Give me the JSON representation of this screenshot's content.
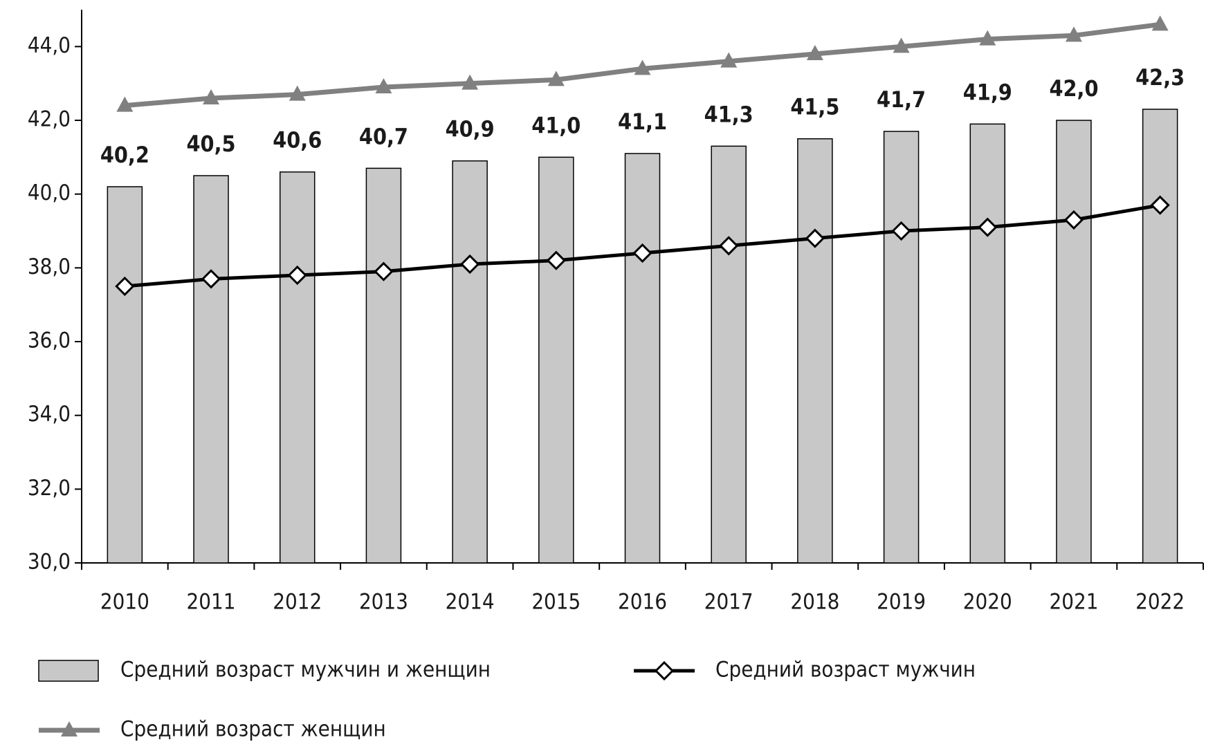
{
  "chart_data": {
    "type": "bar",
    "categories": [
      "2010",
      "2011",
      "2012",
      "2013",
      "2014",
      "2015",
      "2016",
      "2017",
      "2018",
      "2019",
      "2020",
      "2021",
      "2022"
    ],
    "series": [
      {
        "name": "Средний возраст мужчин и женщин",
        "type": "bar",
        "color": "#c8c8c8",
        "values": [
          40.2,
          40.5,
          40.6,
          40.7,
          40.9,
          41.0,
          41.1,
          41.3,
          41.5,
          41.7,
          41.9,
          42.0,
          42.3
        ],
        "value_labels": [
          "40,2",
          "40,5",
          "40,6",
          "40,7",
          "40,9",
          "41,0",
          "41,1",
          "41,3",
          "41,5",
          "41,7",
          "41,9",
          "42,0",
          "42,3"
        ]
      },
      {
        "name": "Средний возраст мужчин",
        "type": "line",
        "color": "#000000",
        "marker": "diamond",
        "values": [
          37.5,
          37.7,
          37.8,
          37.9,
          38.1,
          38.2,
          38.4,
          38.6,
          38.8,
          39.0,
          39.1,
          39.3,
          39.7
        ]
      },
      {
        "name": "Средний возраст женщин",
        "type": "line",
        "color": "#808080",
        "marker": "triangle",
        "values": [
          42.4,
          42.6,
          42.7,
          42.9,
          43.0,
          43.1,
          43.4,
          43.6,
          43.8,
          44.0,
          44.2,
          44.3,
          44.6
        ]
      }
    ],
    "ylim": [
      30,
      45
    ],
    "yticks": [
      {
        "value": 30,
        "label": "30,0"
      },
      {
        "value": 32,
        "label": "32,0"
      },
      {
        "value": 34,
        "label": "34,0"
      },
      {
        "value": 36,
        "label": "36,0"
      },
      {
        "value": 38,
        "label": "38,0"
      },
      {
        "value": 40,
        "label": "40,0"
      },
      {
        "value": 42,
        "label": "42,0"
      },
      {
        "value": 44,
        "label": "44,0"
      }
    ],
    "grid": false
  }
}
